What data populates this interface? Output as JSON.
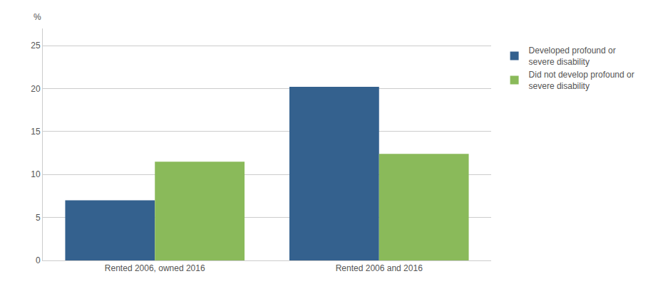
{
  "chart_data": {
    "type": "bar",
    "categories": [
      "Rented 2006, owned 2016",
      "Rented 2006 and 2016"
    ],
    "series": [
      {
        "name": "Developed profound or\nsevere disability",
        "color": "#34618e",
        "values": [
          7.0,
          20.2
        ]
      },
      {
        "name": "Did not develop profound or\nsevere disability",
        "color": "#8aba5a",
        "values": [
          11.5,
          12.4
        ]
      }
    ],
    "ylabel": "%",
    "ylim": [
      0,
      27
    ],
    "yticks": [
      0,
      5,
      10,
      15,
      20,
      25
    ],
    "grid": true,
    "legend": "upper right"
  }
}
